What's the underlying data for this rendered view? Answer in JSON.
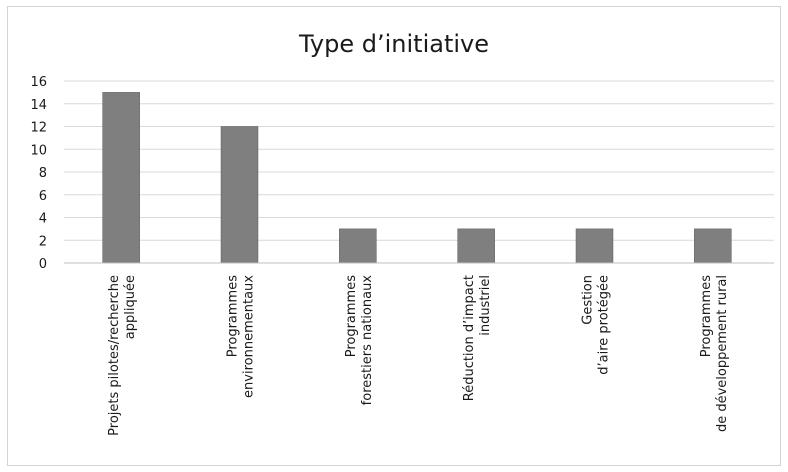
{
  "chart_data": {
    "type": "bar",
    "title": "Type d’initiative",
    "xlabel": "",
    "ylabel": "",
    "categories": [
      [
        "Projets pilotes/recherche",
        "appliquée"
      ],
      [
        "Programmes",
        "environnementaux"
      ],
      [
        "Programmes",
        "forestiers nationaux"
      ],
      [
        "Réduction d’impact",
        "industriel"
      ],
      [
        "Gestion",
        "d’aire protégée"
      ],
      [
        "Programmes",
        "de développement rural"
      ]
    ],
    "values": [
      15,
      12,
      3,
      3,
      3,
      3
    ],
    "ylim": [
      0,
      16
    ],
    "yticks": [
      0,
      2,
      4,
      6,
      8,
      10,
      12,
      14,
      16
    ],
    "grid": true,
    "legend": "none",
    "colors": {
      "bar": "#7f7f7f",
      "bar_stroke": "#5a5a5a",
      "grid": "#d9d9d9",
      "axis": "#bfbfbf"
    }
  }
}
